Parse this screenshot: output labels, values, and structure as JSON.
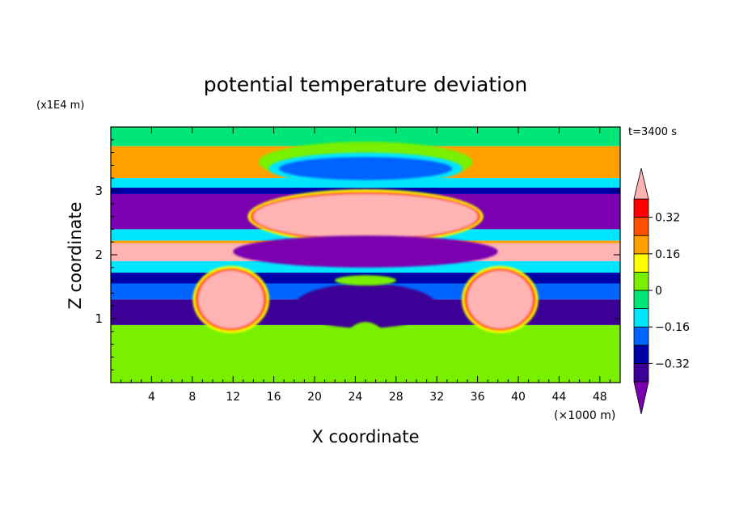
{
  "chart_data": {
    "type": "heatmap",
    "title": "potential temperature deviation",
    "xlabel": "X coordinate",
    "ylabel": "Z coordinate",
    "x_unit": "(×1000 m)",
    "y_unit": "(x1E4 m)",
    "time_label": "t=3400 s",
    "xlim": [
      0,
      50
    ],
    "ylim": [
      0,
      4
    ],
    "x_ticks": [
      "4",
      "8",
      "12",
      "16",
      "20",
      "24",
      "28",
      "32",
      "36",
      "40",
      "44",
      "48"
    ],
    "x_tick_values": [
      4,
      8,
      12,
      16,
      20,
      24,
      28,
      32,
      36,
      40,
      44,
      48
    ],
    "y_ticks": [
      "1",
      "2",
      "3"
    ],
    "y_tick_values": [
      1,
      2,
      3
    ],
    "colorbar": {
      "levels": [
        -0.48,
        -0.4,
        -0.32,
        -0.24,
        -0.16,
        -0.08,
        0,
        0.08,
        0.16,
        0.24,
        0.32,
        0.4
      ],
      "labels": [
        "0.32",
        "0.16",
        "0",
        "−0.16",
        "−0.32"
      ],
      "label_values": [
        0.32,
        0.16,
        0,
        -0.16,
        -0.32
      ],
      "colors": [
        "#7a00b0",
        "#3c0096",
        "#0000a8",
        "#0064ff",
        "#00e6ff",
        "#00e678",
        "#78f000",
        "#ffff00",
        "#ffa000",
        "#ff5000",
        "#ff0000",
        "#ffb4b4"
      ],
      "extend": "both"
    },
    "field_bands": [
      {
        "z": [
          3.7,
          4.0
        ],
        "value": -0.04
      },
      {
        "z": [
          3.2,
          3.7
        ],
        "value": 0.2
      },
      {
        "z": [
          3.05,
          3.2
        ],
        "value": -0.12
      },
      {
        "z": [
          2.95,
          3.05
        ],
        "value": -0.3
      },
      {
        "z": [
          2.4,
          2.95
        ],
        "value": -0.44
      },
      {
        "z": [
          2.22,
          2.4
        ],
        "value": -0.12
      },
      {
        "z": [
          2.18,
          2.22
        ],
        "value": 0.2
      },
      {
        "z": [
          1.9,
          2.18
        ],
        "value": 0.45
      },
      {
        "z": [
          1.72,
          1.9
        ],
        "value": -0.12
      },
      {
        "z": [
          1.55,
          1.72
        ],
        "value": -0.3
      },
      {
        "z": [
          1.3,
          1.55
        ],
        "value": -0.2
      },
      {
        "z": [
          0.9,
          1.3
        ],
        "value": -0.4
      },
      {
        "z": [
          0.0,
          0.9
        ],
        "value": 0.02
      }
    ],
    "features": [
      {
        "kind": "blob",
        "cx": 25,
        "cz": 3.45,
        "rx": 10.5,
        "rz": 0.32,
        "value": 0.04
      },
      {
        "kind": "blob",
        "cx": 25,
        "cz": 3.35,
        "rx": 9.5,
        "rz": 0.25,
        "value": -0.1
      },
      {
        "kind": "blob",
        "cx": 25,
        "cz": 3.35,
        "rx": 8.5,
        "rz": 0.18,
        "value": -0.2
      },
      {
        "kind": "blob",
        "cx": 25,
        "cz": 2.95,
        "rx": 1.8,
        "rz": 0.05,
        "value": -0.35
      },
      {
        "kind": "blob",
        "cx": 25,
        "cz": 2.6,
        "rx": 11,
        "rz": 0.35,
        "value": 0.45
      },
      {
        "kind": "blob",
        "cx": 25,
        "cz": 2.05,
        "rx": 13,
        "rz": 0.25,
        "value": -0.44
      },
      {
        "kind": "blob",
        "cx": 25,
        "cz": 1.2,
        "rx": 7,
        "rz": 0.35,
        "value": -0.4
      },
      {
        "kind": "blob",
        "cx": 25,
        "cz": 1.6,
        "rx": 3,
        "rz": 0.08,
        "value": 0.0
      },
      {
        "kind": "blob",
        "cx": 11.8,
        "cz": 1.3,
        "rx": 3.2,
        "rz": 0.45,
        "value": 0.45
      },
      {
        "kind": "blob",
        "cx": 38.2,
        "cz": 1.3,
        "rx": 3.2,
        "rz": 0.45,
        "value": 0.45
      },
      {
        "kind": "blob",
        "cx": 25,
        "cz": 0.55,
        "rx": 2.2,
        "rz": 0.4,
        "value": 0.06
      }
    ]
  }
}
